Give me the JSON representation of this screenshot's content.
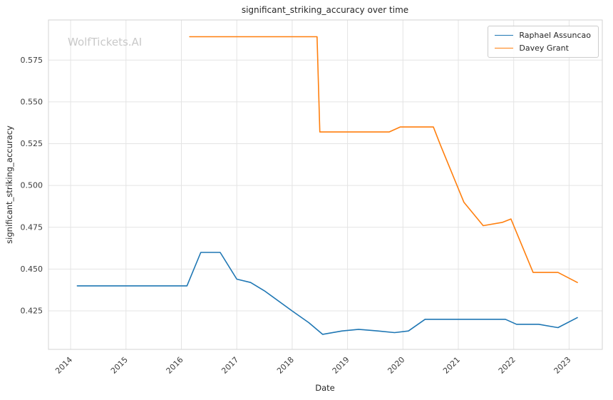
{
  "watermark": "WolfTickets.AI",
  "chart_data": {
    "type": "line",
    "title": "significant_striking_accuracy over time",
    "xlabel": "Date",
    "ylabel": "significant_striking_accuracy",
    "grid": true,
    "legend_position": "upper right",
    "xlim": [
      2013.6,
      2023.6
    ],
    "ylim": [
      0.402,
      0.599
    ],
    "x_ticks": [
      2014,
      2015,
      2016,
      2017,
      2018,
      2019,
      2020,
      2021,
      2022,
      2023
    ],
    "y_ticks": [
      0.425,
      0.45,
      0.475,
      0.5,
      0.525,
      0.55,
      0.575
    ],
    "series": [
      {
        "name": "Raphael Assuncao",
        "color": "#1f77b4",
        "points": [
          [
            2014.12,
            0.44
          ],
          [
            2016.1,
            0.44
          ],
          [
            2016.35,
            0.46
          ],
          [
            2016.7,
            0.46
          ],
          [
            2017.0,
            0.444
          ],
          [
            2017.25,
            0.442
          ],
          [
            2017.5,
            0.437
          ],
          [
            2018.0,
            0.425
          ],
          [
            2018.3,
            0.418
          ],
          [
            2018.55,
            0.411
          ],
          [
            2018.9,
            0.413
          ],
          [
            2019.2,
            0.414
          ],
          [
            2019.55,
            0.413
          ],
          [
            2019.85,
            0.412
          ],
          [
            2020.1,
            0.413
          ],
          [
            2020.4,
            0.42
          ],
          [
            2021.0,
            0.42
          ],
          [
            2021.5,
            0.42
          ],
          [
            2021.85,
            0.42
          ],
          [
            2022.05,
            0.417
          ],
          [
            2022.45,
            0.417
          ],
          [
            2022.8,
            0.415
          ],
          [
            2023.15,
            0.421
          ]
        ]
      },
      {
        "name": "Davey Grant",
        "color": "#ff7f0e",
        "points": [
          [
            2016.15,
            0.589
          ],
          [
            2018.45,
            0.589
          ],
          [
            2018.5,
            0.532
          ],
          [
            2019.3,
            0.532
          ],
          [
            2019.75,
            0.532
          ],
          [
            2019.95,
            0.535
          ],
          [
            2020.3,
            0.535
          ],
          [
            2020.55,
            0.535
          ],
          [
            2020.68,
            0.524
          ],
          [
            2021.1,
            0.49
          ],
          [
            2021.45,
            0.476
          ],
          [
            2021.8,
            0.478
          ],
          [
            2021.95,
            0.48
          ],
          [
            2022.35,
            0.448
          ],
          [
            2022.8,
            0.448
          ],
          [
            2023.15,
            0.442
          ]
        ]
      }
    ]
  }
}
